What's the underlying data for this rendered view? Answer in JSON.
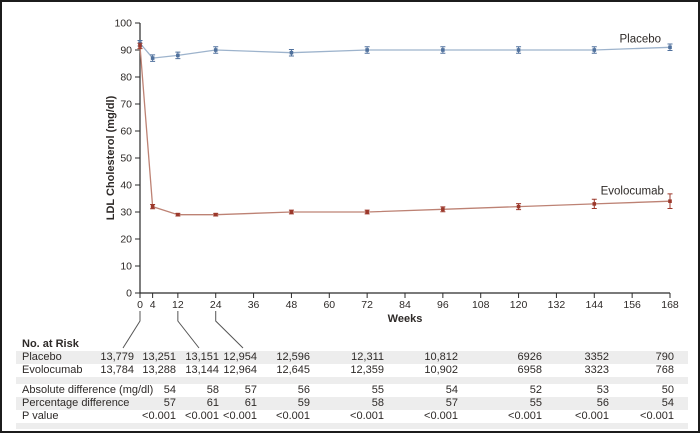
{
  "chart_data": {
    "type": "line",
    "title": "",
    "xlabel": "Weeks",
    "ylabel": "LDL Cholesterol (mg/dl)",
    "xlim": [
      0,
      168
    ],
    "ylim": [
      0,
      100
    ],
    "grid": false,
    "x_ticks": [
      0,
      4,
      12,
      24,
      36,
      48,
      60,
      72,
      84,
      96,
      108,
      120,
      132,
      144,
      156,
      168
    ],
    "y_ticks": [
      0,
      10,
      20,
      30,
      40,
      50,
      60,
      70,
      80,
      90,
      100
    ],
    "legend_position": "labels-at-line-ends",
    "series": [
      {
        "name": "Placebo",
        "line_color": "#9db3cc",
        "marker_color": "#50719d",
        "x": [
          0,
          4,
          12,
          24,
          48,
          72,
          96,
          120,
          144,
          168
        ],
        "values": [
          92.5,
          87,
          88,
          90,
          89,
          90,
          90,
          90,
          90,
          91
        ],
        "err": [
          1,
          1.2,
          1.2,
          1.2,
          1.2,
          1.2,
          1.2,
          1.2,
          1.2,
          1.2
        ],
        "label_week": 152,
        "label_value": 92.8
      },
      {
        "name": "Evolocumab",
        "line_color": "#bd8274",
        "marker_color": "#9c382b",
        "x": [
          0,
          4,
          12,
          24,
          48,
          72,
          96,
          120,
          144,
          168
        ],
        "values": [
          91.5,
          32,
          29,
          29,
          30,
          30,
          31,
          32,
          33,
          34
        ],
        "err": [
          1,
          0.8,
          0.5,
          0.5,
          0.7,
          0.7,
          0.9,
          1.1,
          1.7,
          2.7
        ],
        "label_week": 146,
        "label_value": 36.5
      }
    ]
  },
  "table": {
    "no_at_risk_label": "No. at Risk",
    "risk_rows": [
      {
        "label": "Placebo",
        "values": [
          "13,779",
          "13,251",
          "13,151",
          "12,954",
          "12,596",
          "12,311",
          "10,812",
          "6926",
          "3352",
          "790"
        ]
      },
      {
        "label": "Evolocumab",
        "values": [
          "13,784",
          "13,288",
          "13,144",
          "12,964",
          "12,645",
          "12,359",
          "10,902",
          "6958",
          "3323",
          "768"
        ]
      }
    ],
    "stat_rows": [
      {
        "label": "Absolute difference (mg/dl)",
        "values": [
          "54",
          "58",
          "57",
          "56",
          "55",
          "54",
          "52",
          "53",
          "50"
        ]
      },
      {
        "label": "Percentage difference",
        "values": [
          "57",
          "61",
          "61",
          "59",
          "58",
          "57",
          "55",
          "56",
          "54"
        ]
      },
      {
        "label": "P value",
        "values": [
          "<0.001",
          "<0.001",
          "<0.001",
          "<0.001",
          "<0.001",
          "<0.001",
          "<0.001",
          "<0.001",
          "<0.001"
        ]
      }
    ]
  },
  "colors": {
    "axis": "#2a2a2a",
    "text": "#2e2a28",
    "row_shade": "#ededed",
    "frame_border": "#1c1c1c"
  }
}
